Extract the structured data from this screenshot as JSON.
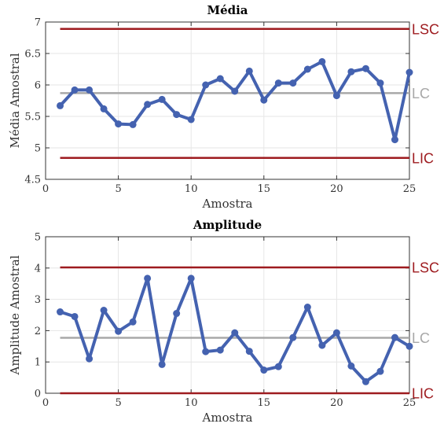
{
  "colors": {
    "series": "#4462b0",
    "limit": "#9e1b1f",
    "center": "#a8a8a8",
    "grid": "#e6e6e6",
    "axis": "#333333"
  },
  "chart_data": [
    {
      "type": "line",
      "title": "Média",
      "xlabel": "Amostra",
      "ylabel": "Média Amostral",
      "xlim": [
        0,
        25
      ],
      "ylim": [
        4.5,
        7
      ],
      "xticks": [
        0,
        5,
        10,
        15,
        20,
        25
      ],
      "yticks": [
        4.5,
        5,
        5.5,
        6,
        6.5,
        7
      ],
      "grid": true,
      "x": [
        1,
        2,
        3,
        4,
        5,
        6,
        7,
        8,
        9,
        10,
        11,
        12,
        13,
        14,
        15,
        16,
        17,
        18,
        19,
        20,
        21,
        22,
        23,
        24,
        25
      ],
      "series": [
        {
          "values": [
            5.67,
            5.92,
            5.92,
            5.62,
            5.38,
            5.37,
            5.69,
            5.77,
            5.53,
            5.45,
            6.0,
            6.1,
            5.9,
            6.22,
            5.76,
            6.03,
            6.03,
            6.25,
            6.37,
            5.83,
            6.21,
            6.26,
            6.03,
            5.13,
            6.2
          ]
        }
      ],
      "control_lines": [
        {
          "label": "LSC",
          "value": 6.89,
          "role": "limit"
        },
        {
          "label": "LC",
          "value": 5.87,
          "role": "center"
        },
        {
          "label": "LIC",
          "value": 4.84,
          "role": "limit"
        }
      ]
    },
    {
      "type": "line",
      "title": "Amplitude",
      "xlabel": "Amostra",
      "ylabel": "Amplitude Amostral",
      "xlim": [
        0,
        25
      ],
      "ylim": [
        0,
        5
      ],
      "xticks": [
        0,
        5,
        10,
        15,
        20,
        25
      ],
      "yticks": [
        0,
        1,
        2,
        3,
        4,
        5
      ],
      "grid": true,
      "x": [
        1,
        2,
        3,
        4,
        5,
        6,
        7,
        8,
        9,
        10,
        11,
        12,
        13,
        14,
        15,
        16,
        17,
        18,
        19,
        20,
        21,
        22,
        23,
        24,
        25
      ],
      "series": [
        {
          "values": [
            2.6,
            2.45,
            1.1,
            2.65,
            1.98,
            2.28,
            3.67,
            0.92,
            2.55,
            3.67,
            1.33,
            1.38,
            1.93,
            1.34,
            0.74,
            0.85,
            1.78,
            2.75,
            1.53,
            1.93,
            0.87,
            0.37,
            0.7,
            1.78,
            1.5
          ]
        }
      ],
      "control_lines": [
        {
          "label": "LSC",
          "value": 4.02,
          "role": "limit"
        },
        {
          "label": "LC",
          "value": 1.77,
          "role": "center"
        },
        {
          "label": "LIC",
          "value": 0,
          "role": "limit"
        }
      ]
    }
  ]
}
